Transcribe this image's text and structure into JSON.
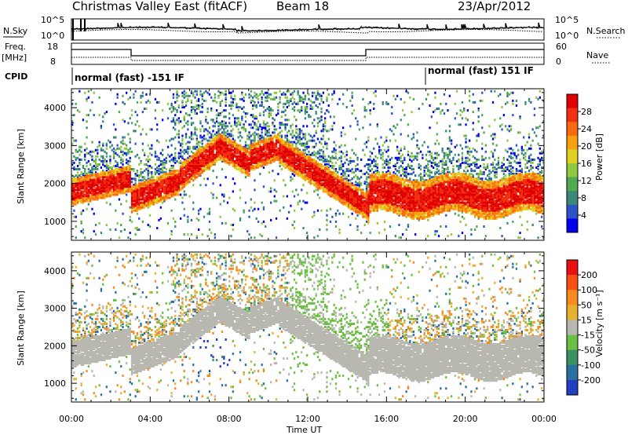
{
  "header": {
    "station": "Christmas Valley East (fitACF)",
    "beam": "Beam 18",
    "date": "23/Apr/2012"
  },
  "top_panels": {
    "nsky_label": "N.Sky",
    "nsky_ticks": [
      "10^5",
      "10^0"
    ],
    "nsearch_label": "N.Search",
    "nsearch_ticks": [
      "10^5",
      "10^0"
    ],
    "freq_label_1": "Freq.",
    "freq_label_2": "[MHz]",
    "freq_ticks": [
      "18",
      "8"
    ],
    "nave_label": "Nave",
    "nave_ticks": [
      "60",
      "0"
    ],
    "cpid_label": "CPID",
    "cpid_segments": [
      "normal (fast) -151 IF",
      "normal (fast) 151 IF"
    ]
  },
  "chart_data": [
    {
      "type": "heatmap",
      "panel": "power",
      "ylabel": "Slant Range [km]",
      "xlabel": "",
      "ylim": [
        500,
        4500
      ],
      "y_ticks": [
        1000,
        2000,
        3000,
        4000
      ],
      "colorbar_label": "Power [dB]",
      "colorbar_ticks": [
        28,
        24,
        20,
        16,
        12,
        8,
        4
      ],
      "colors": [
        "#0000ee",
        "#2c54c8",
        "#3a8878",
        "#4faa50",
        "#8ec840",
        "#e0d020",
        "#f8a010",
        "#f86a10",
        "#f23010",
        "#e00000"
      ]
    },
    {
      "type": "heatmap",
      "panel": "velocity",
      "ylabel": "Slant Range [km]",
      "xlabel": "Time UT",
      "ylim": [
        500,
        4500
      ],
      "y_ticks": [
        1000,
        2000,
        3000,
        4000
      ],
      "x_ticks": [
        "00:00",
        "04:00",
        "08:00",
        "12:00",
        "16:00",
        "20:00",
        "00:00"
      ],
      "colorbar_label": "Velocity [m s⁻¹]",
      "colorbar_ticks": [
        "200",
        "100",
        "50",
        "15",
        "-15",
        "-50",
        "-100",
        "-200"
      ],
      "colors": [
        "#2040c0",
        "#2a70a0",
        "#3a9060",
        "#6ac040",
        "#b8b8b0",
        "#e8b030",
        "#f88a20",
        "#f85010",
        "#e81010"
      ]
    }
  ]
}
